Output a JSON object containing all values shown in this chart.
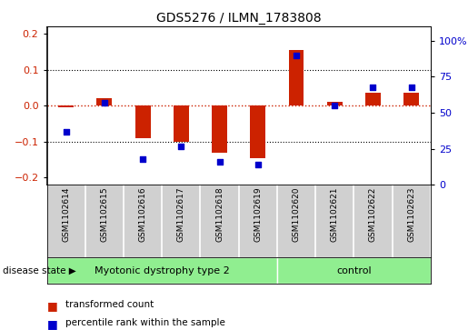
{
  "title": "GDS5276 / ILMN_1783808",
  "samples": [
    "GSM1102614",
    "GSM1102615",
    "GSM1102616",
    "GSM1102617",
    "GSM1102618",
    "GSM1102619",
    "GSM1102620",
    "GSM1102621",
    "GSM1102622",
    "GSM1102623"
  ],
  "transformed_count": [
    -0.005,
    0.02,
    -0.09,
    -0.1,
    -0.13,
    -0.145,
    0.155,
    0.01,
    0.035,
    0.035
  ],
  "percentile_rank": [
    37,
    57,
    18,
    27,
    16,
    14,
    90,
    55,
    68,
    68
  ],
  "disease_groups": [
    {
      "label": "Myotonic dystrophy type 2",
      "start": 0,
      "end": 6,
      "color": "#90ee90"
    },
    {
      "label": "control",
      "start": 6,
      "end": 10,
      "color": "#90ee90"
    }
  ],
  "ylim_left": [
    -0.22,
    0.22
  ],
  "ylim_right": [
    0,
    110
  ],
  "yticks_left": [
    -0.2,
    -0.1,
    0.0,
    0.1,
    0.2
  ],
  "yticks_right": [
    0,
    25,
    50,
    75,
    100
  ],
  "ytick_right_labels": [
    "0",
    "25",
    "50",
    "75",
    "100%"
  ],
  "red_color": "#cc2200",
  "blue_color": "#0000cc",
  "bar_width": 0.4,
  "disease_state_label": "disease state",
  "legend_red": "transformed count",
  "legend_blue": "percentile rank within the sample",
  "label_bg": "#d0d0d0",
  "plot_bg": "#ffffff"
}
